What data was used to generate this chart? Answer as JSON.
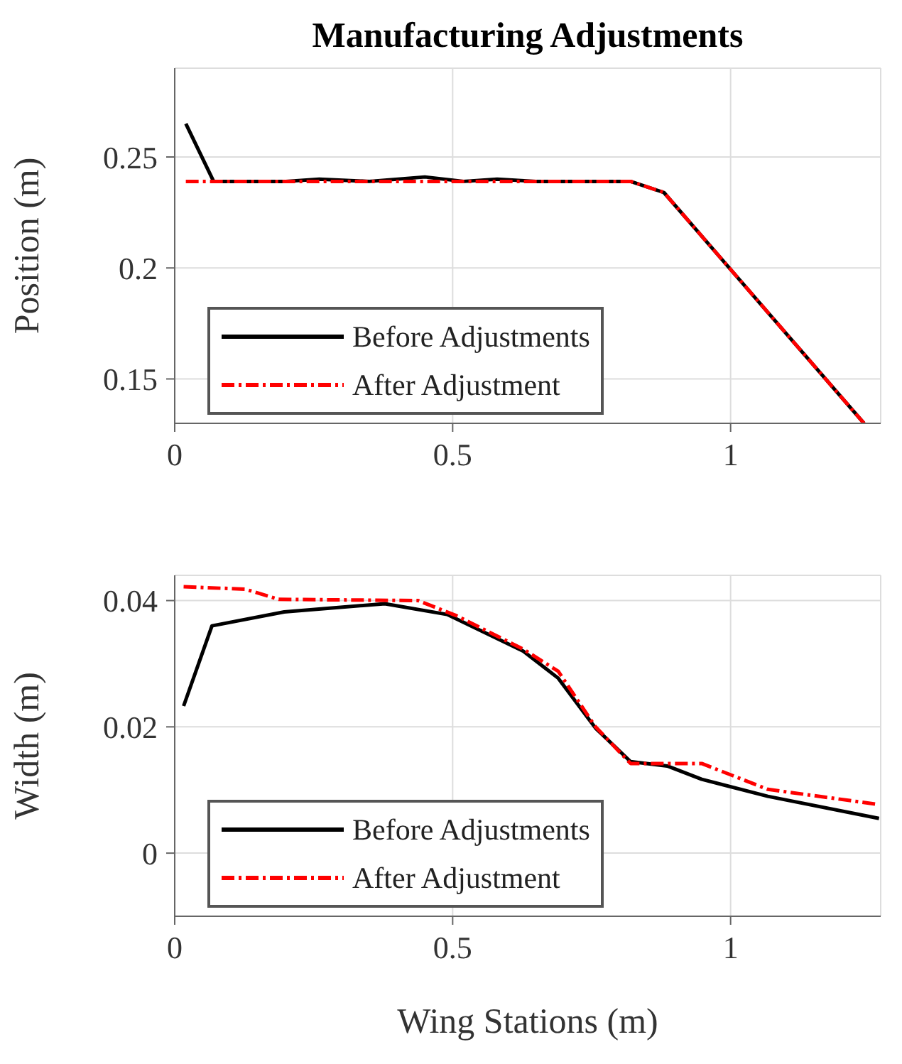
{
  "chart_data": [
    {
      "type": "line",
      "title": "Manufacturing Adjustments",
      "ylabel": "Position (m)",
      "xlim": [
        0,
        1.27
      ],
      "xticks": [
        0,
        0.5,
        1
      ],
      "ylim": [
        0.13,
        0.29
      ],
      "yticks": [
        0.15,
        0.2,
        0.25
      ],
      "grid": true,
      "legend": "bottom left",
      "series": [
        {
          "name": "Before Adjustments",
          "color": "#000000",
          "line_style": "solid",
          "x": [
            0.02,
            0.07,
            0.2,
            0.26,
            0.35,
            0.45,
            0.52,
            0.58,
            0.65,
            0.82,
            0.88,
            1.24
          ],
          "values": [
            0.265,
            0.239,
            0.239,
            0.24,
            0.239,
            0.241,
            0.239,
            0.24,
            0.239,
            0.239,
            0.234,
            0.13
          ]
        },
        {
          "name": "After Adjustment",
          "color": "#ff0000",
          "line_style": "dashed",
          "x": [
            0.02,
            0.82,
            0.88,
            1.24
          ],
          "values": [
            0.239,
            0.239,
            0.234,
            0.13
          ]
        }
      ]
    },
    {
      "type": "line",
      "xlabel": "Wing Stations (m)",
      "ylabel": "Width (m)",
      "xlim": [
        0,
        1.27
      ],
      "xticks": [
        0,
        0.5,
        1
      ],
      "ylim": [
        -0.01,
        0.044
      ],
      "yticks": [
        0,
        0.02,
        0.04
      ],
      "grid": true,
      "legend": "bottom left",
      "series": [
        {
          "name": "Before Adjustments",
          "color": "#000000",
          "line_style": "solid",
          "x": [
            0.016,
            0.067,
            0.197,
            0.378,
            0.49,
            0.627,
            0.69,
            0.757,
            0.82,
            0.886,
            0.948,
            1.067,
            1.267
          ],
          "values": [
            0.0233,
            0.036,
            0.0382,
            0.0395,
            0.0378,
            0.032,
            0.0277,
            0.0198,
            0.0145,
            0.0138,
            0.0117,
            0.009,
            0.0055
          ]
        },
        {
          "name": "After Adjustment",
          "color": "#ff0000",
          "line_style": "dashed",
          "x": [
            0.016,
            0.127,
            0.187,
            0.438,
            0.507,
            0.627,
            0.69,
            0.757,
            0.82,
            0.948,
            1.067,
            1.267
          ],
          "values": [
            0.0422,
            0.0418,
            0.0402,
            0.04,
            0.0376,
            0.0323,
            0.0288,
            0.02,
            0.0142,
            0.0142,
            0.0101,
            0.0077
          ]
        }
      ]
    }
  ]
}
